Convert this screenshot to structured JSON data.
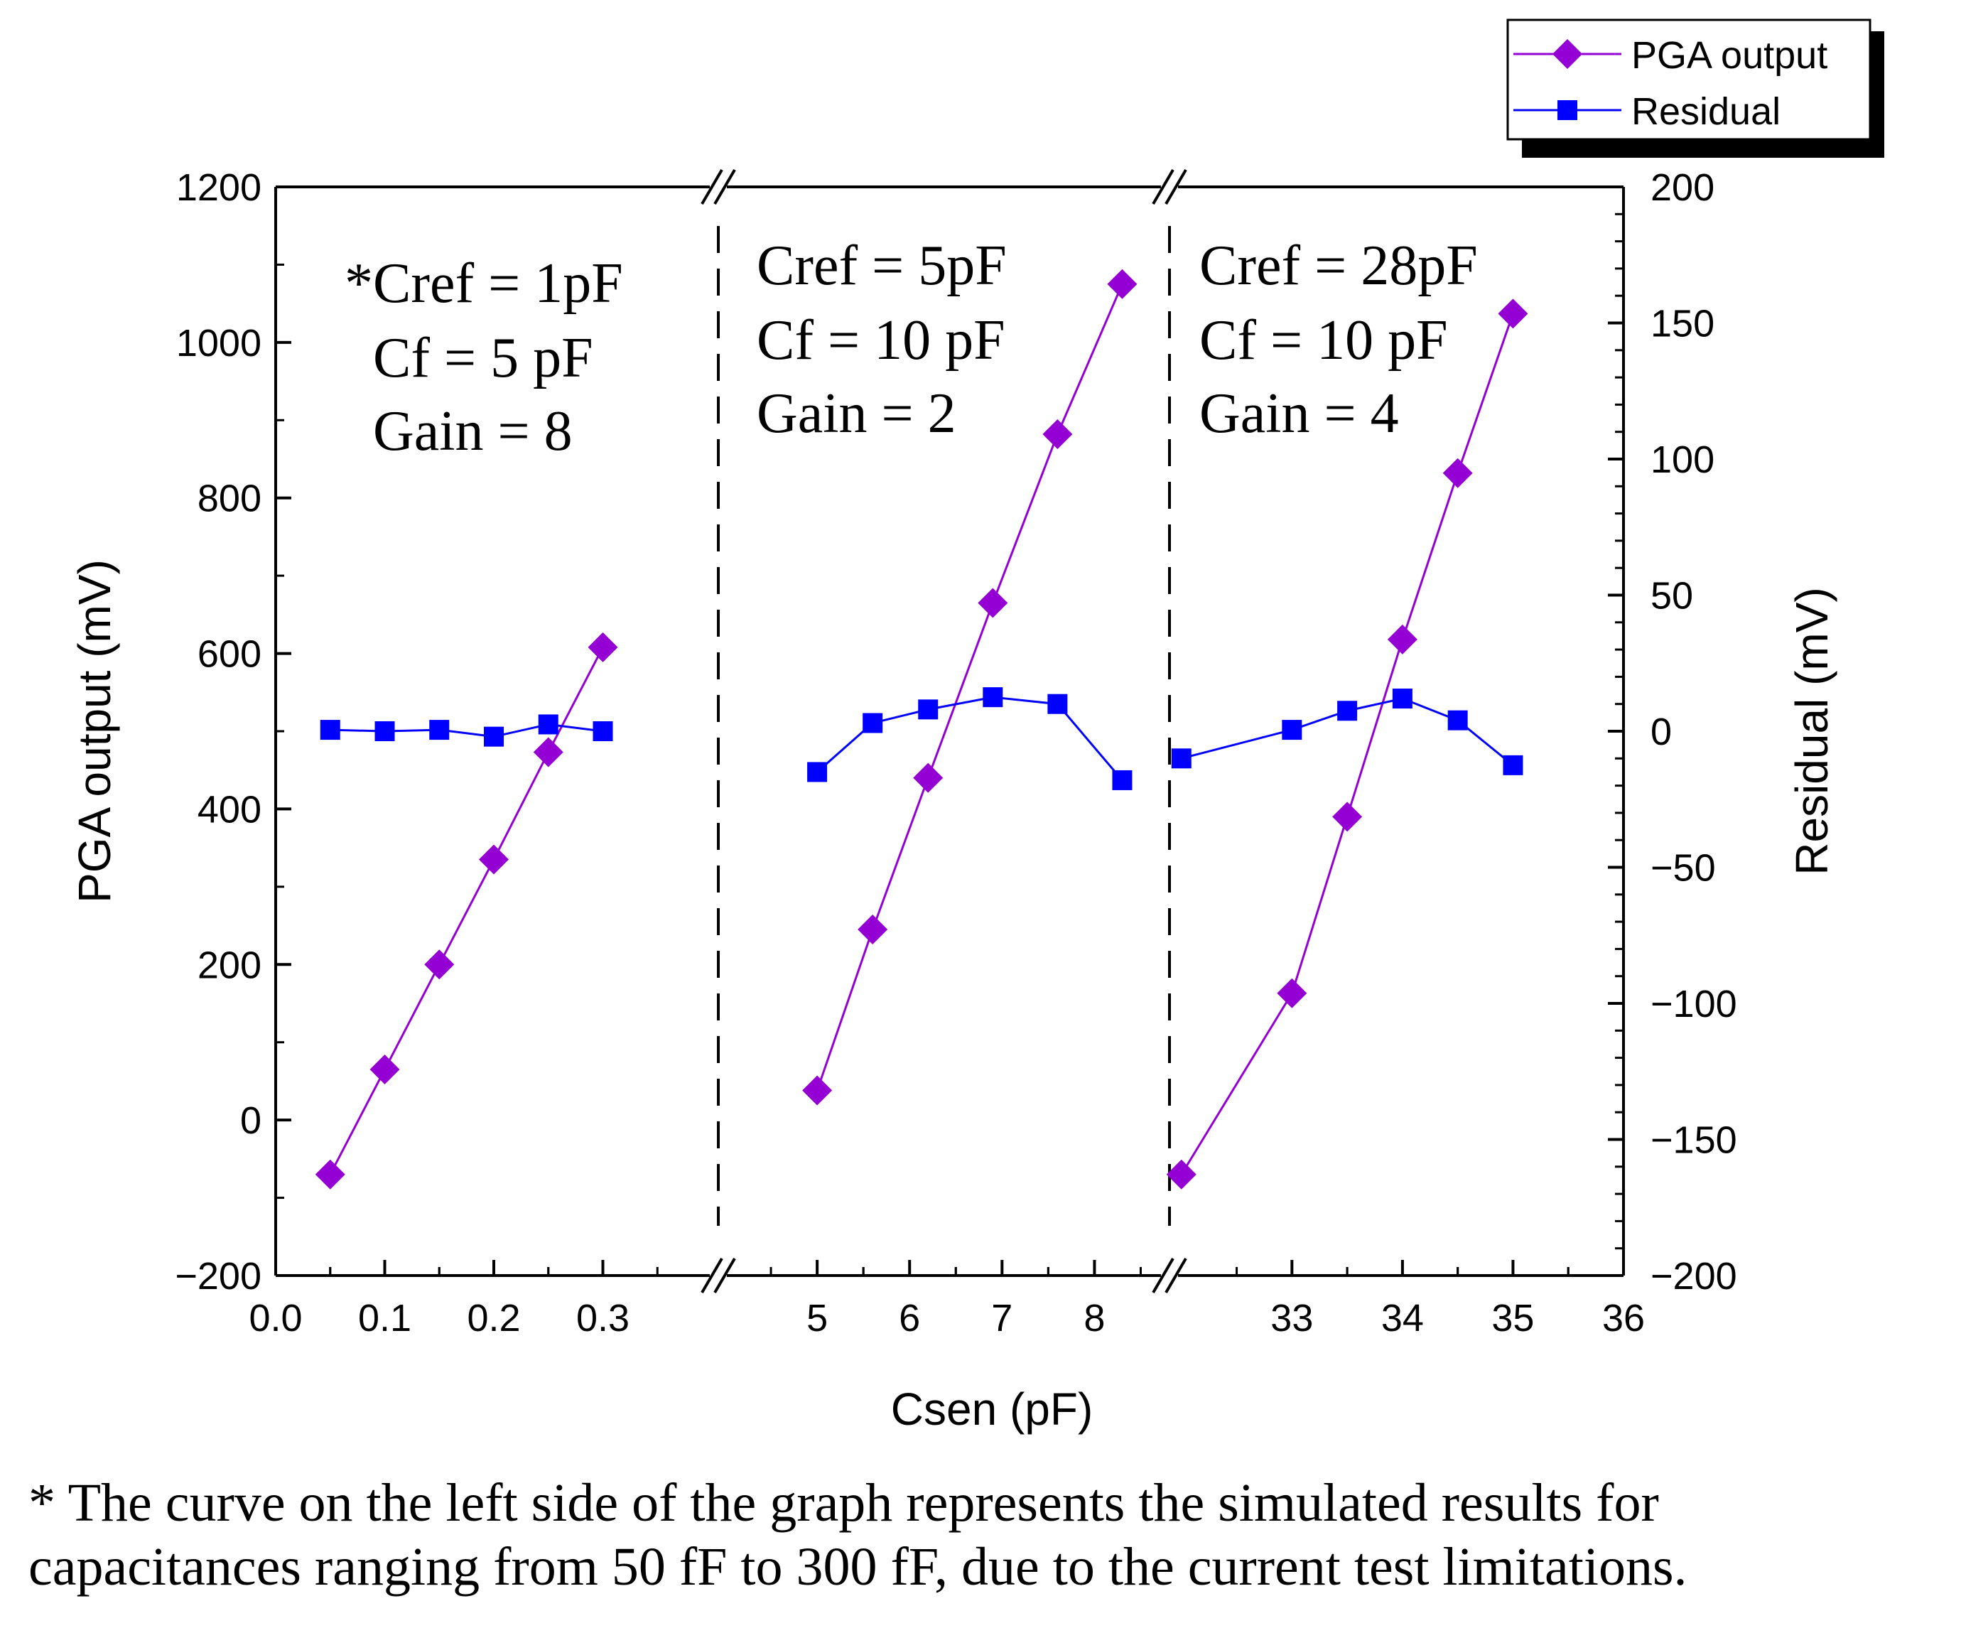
{
  "chart_data": {
    "type": "line",
    "xlabel": "Csen (pF)",
    "ylabel_left": "PGA output (mV)",
    "ylabel_right": "Residual (mV)",
    "ylim_left": [
      -200,
      1200
    ],
    "ylim_right": [
      -200,
      200
    ],
    "yticks_left": [
      "1200",
      "1000",
      "800",
      "600",
      "400",
      "200",
      "0",
      "−200"
    ],
    "yticks_right": [
      "200",
      "150",
      "100",
      "50",
      "0",
      "−50",
      "−100",
      "−150",
      "−200"
    ],
    "legend_position": "top-right",
    "series_names": [
      "PGA output",
      "Residual"
    ],
    "colors": {
      "pga": "#9400D3",
      "residual": "#0000FF"
    },
    "panels": [
      {
        "xlim": [
          0.0,
          0.4
        ],
        "xticks": [
          "0.0",
          "0.1",
          "0.2",
          "0.3"
        ],
        "annotation": [
          "*Cref = 1pF",
          "Cf = 5 pF",
          "Gain = 8"
        ],
        "x": [
          0.05,
          0.1,
          0.15,
          0.2,
          0.25,
          0.3
        ],
        "pga": [
          -70,
          65,
          200,
          335,
          473,
          608
        ],
        "residual": [
          0.5,
          0,
          0.5,
          -2,
          2.5,
          0
        ]
      },
      {
        "xlim": [
          4.0,
          8.75
        ],
        "xticks": [
          "5",
          "6",
          "7",
          "8"
        ],
        "annotation": [
          "Cref = 5pF",
          "Cf = 10 pF",
          "Gain = 2"
        ],
        "x": [
          5.0,
          5.6,
          6.2,
          6.9,
          7.6,
          8.3
        ],
        "pga": [
          38,
          245,
          440,
          665,
          882,
          1075
        ],
        "residual": [
          -15,
          3,
          8,
          12.5,
          10,
          -18
        ]
      },
      {
        "xlim": [
          31.95,
          36.0
        ],
        "xticks": [
          "33",
          "34",
          "35",
          "36"
        ],
        "annotation": [
          "Cref = 28pF",
          "Cf = 10 pF",
          "Gain = 4"
        ],
        "x": [
          32.0,
          33.0,
          33.5,
          34.0,
          34.5,
          35.0
        ],
        "pga": [
          -70,
          163,
          390,
          618,
          832,
          1037
        ],
        "residual": [
          -10,
          0.5,
          7.5,
          12,
          4,
          -12.5
        ]
      }
    ]
  },
  "footnote": {
    "line1": "* The curve on the left side of the graph represents the simulated results for",
    "line2": "capacitances ranging from 50 fF to 300 fF, due to the current test limitations."
  }
}
